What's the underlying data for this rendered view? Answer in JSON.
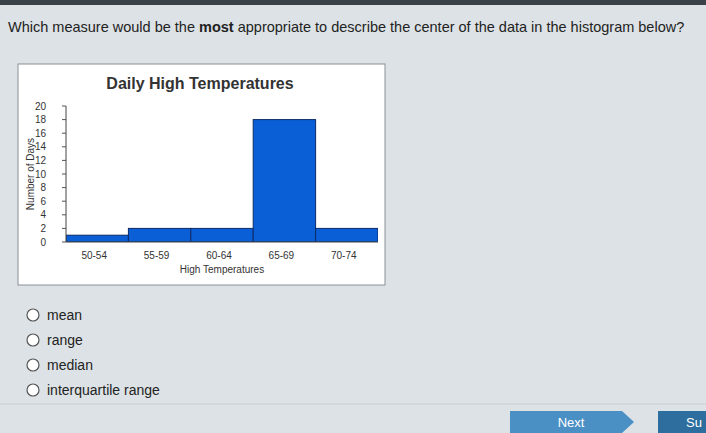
{
  "question": [
    "Which measure would be the ",
    "most",
    " appropriate to describe the center of the data in the histogram below?"
  ],
  "chart_data": {
    "type": "histogram",
    "title": "Daily High Temperatures",
    "x_label": "High Temperatures",
    "y_label": "Number of Days",
    "categories": [
      "50-54",
      "55-59",
      "60-64",
      "65-69",
      "70-74"
    ],
    "values": [
      1,
      2,
      2,
      18,
      2
    ],
    "color": "#0a5fd6",
    "ylim": [
      0,
      20
    ],
    "yticks": [
      0,
      2,
      4,
      6,
      8,
      10,
      12,
      14,
      16,
      18,
      20
    ],
    "grid": false
  },
  "options": [
    "mean",
    "range",
    "median",
    "interquartile range"
  ],
  "buttons": [
    "Next",
    "Su"
  ]
}
